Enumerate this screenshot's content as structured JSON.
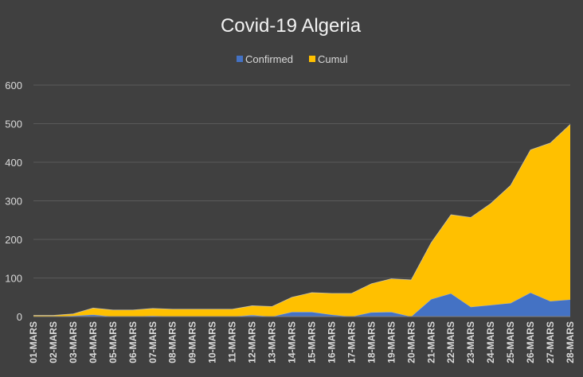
{
  "chart_data": {
    "type": "area",
    "title": "Covid-19 Algeria",
    "categories": [
      "01-MARS",
      "02-MARS",
      "03-MARS",
      "04-MARS",
      "05-MARS",
      "06-MARS",
      "07-MARS",
      "08-MARS",
      "09-MARS",
      "10-MARS",
      "11-MARS",
      "12-MARS",
      "13-MARS",
      "14-MARS",
      "15-MARS",
      "16-MARS",
      "17-MARS",
      "18-MARS",
      "19-MARS",
      "20-MARS",
      "21-MARS",
      "22-MARS",
      "23-MARS",
      "24-MARS",
      "25-MARS",
      "26-MARS",
      "27-MARS",
      "28-MARS"
    ],
    "series": [
      {
        "name": "Confirmed",
        "color": "#4472c4",
        "values": [
          0,
          0,
          2,
          5,
          0,
          0,
          2,
          0,
          0,
          0,
          0,
          4,
          0,
          12,
          12,
          5,
          0,
          11,
          12,
          0,
          45,
          60,
          25,
          30,
          35,
          62,
          40,
          44
        ]
      },
      {
        "name": "Cumul",
        "color": "#ffc000",
        "values": [
          3,
          3,
          5,
          17,
          17,
          17,
          19,
          19,
          19,
          19,
          19,
          24,
          26,
          38,
          50,
          55,
          60,
          74,
          86,
          95,
          146,
          204,
          232,
          263,
          305,
          370,
          410,
          454
        ]
      }
    ],
    "stacked": true,
    "ylim": [
      0,
      600
    ],
    "yticks": [
      0,
      100,
      200,
      300,
      400,
      500,
      600
    ],
    "grid": true,
    "legend": "top"
  }
}
